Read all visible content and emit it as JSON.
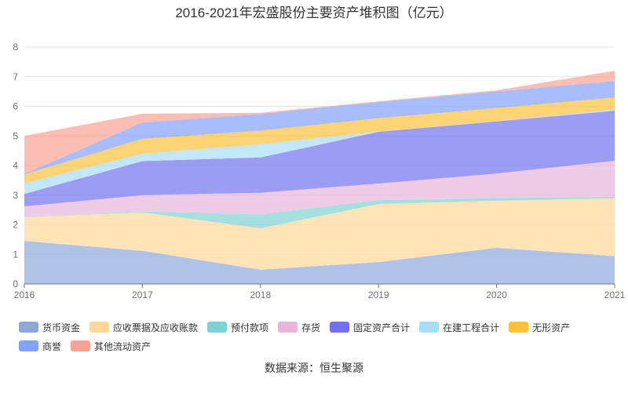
{
  "chart_data": {
    "type": "area",
    "stacked": true,
    "title": "2016-2021年宏盛股份主要资产堆积图（亿元）",
    "categories": [
      "2016",
      "2017",
      "2018",
      "2019",
      "2020",
      "2021"
    ],
    "ylim": [
      0,
      8
    ],
    "yticks": [
      "0",
      "1",
      "2",
      "3",
      "4",
      "5",
      "6",
      "7",
      "8"
    ],
    "grid": true,
    "legend_position": "bottom",
    "series": [
      {
        "name": "货币资金",
        "color": "#8ea8da",
        "values": [
          1.45,
          1.12,
          0.48,
          0.74,
          1.22,
          0.94
        ]
      },
      {
        "name": "应收票据及应收账款",
        "color": "#ffd89a",
        "values": [
          0.8,
          1.3,
          1.4,
          1.96,
          1.59,
          1.95
        ]
      },
      {
        "name": "预付款项",
        "color": "#7dd3d3",
        "values": [
          0.0,
          0.03,
          0.47,
          0.13,
          0.09,
          0.06
        ]
      },
      {
        "name": "存货",
        "color": "#e8b6da",
        "values": [
          0.37,
          0.55,
          0.73,
          0.56,
          0.83,
          1.21
        ]
      },
      {
        "name": "固定资产合计",
        "color": "#7272f0",
        "values": [
          0.42,
          1.15,
          1.19,
          1.75,
          1.76,
          1.69
        ]
      },
      {
        "name": "在建工程合计",
        "color": "#a8dcf8",
        "values": [
          0.36,
          0.25,
          0.45,
          0.01,
          0.01,
          0.04
        ]
      },
      {
        "name": "无形资产",
        "color": "#fbc23a",
        "values": [
          0.3,
          0.5,
          0.46,
          0.45,
          0.44,
          0.41
        ]
      },
      {
        "name": "商誉",
        "color": "#84a0fa",
        "values": [
          0.02,
          0.55,
          0.56,
          0.55,
          0.56,
          0.55
        ]
      },
      {
        "name": "其他流动资产",
        "color": "#f8a394",
        "values": [
          1.28,
          0.3,
          0.04,
          0.02,
          0.04,
          0.35
        ]
      }
    ]
  },
  "source": "数据来源：恒生聚源"
}
